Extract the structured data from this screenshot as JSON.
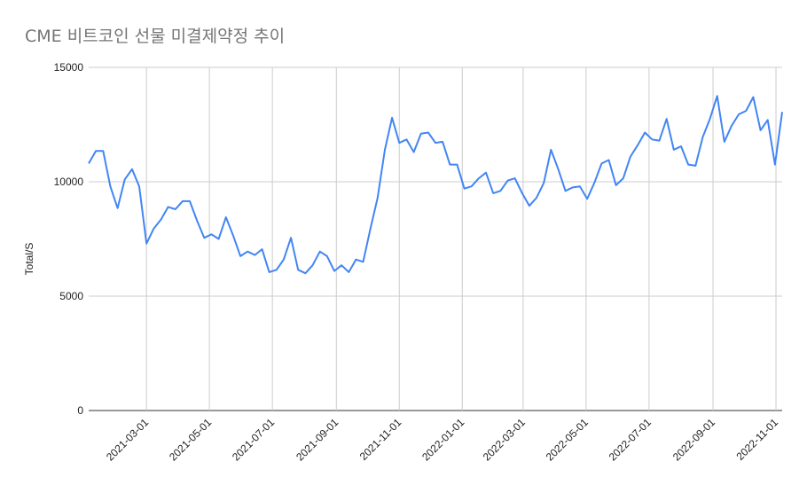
{
  "chart_data": {
    "type": "line",
    "title": "CME 비트코인 선물 미결제약정 추이",
    "xlabel": "",
    "ylabel": "Total/S",
    "ylim": [
      0,
      15000
    ],
    "yticks": [
      "0",
      "5000",
      "10000",
      "15000"
    ],
    "xticks": [
      "2021-03-01",
      "2021-05-01",
      "2021-07-01",
      "2021-09-01",
      "2021-11-01",
      "2022-01-01",
      "2022-03-01",
      "2022-05-01",
      "2022-07-01",
      "2022-09-01",
      "2022-11-01"
    ],
    "grid": true,
    "colors": {
      "line": "#4285f4",
      "grid": "#cccccc",
      "axis": "#333333"
    },
    "series": [
      {
        "x": [
          "2021-01-04",
          "2021-01-11",
          "2021-01-18",
          "2021-01-25",
          "2021-02-01",
          "2021-02-08",
          "2021-02-15",
          "2021-02-22",
          "2021-03-01",
          "2021-03-08",
          "2021-03-15",
          "2021-03-22",
          "2021-03-29",
          "2021-04-05",
          "2021-04-12",
          "2021-04-19",
          "2021-04-26",
          "2021-05-03",
          "2021-05-10",
          "2021-05-17",
          "2021-05-24",
          "2021-05-31",
          "2021-06-07",
          "2021-06-14",
          "2021-06-21",
          "2021-06-28",
          "2021-07-05",
          "2021-07-12",
          "2021-07-19",
          "2021-07-26",
          "2021-08-02",
          "2021-08-09",
          "2021-08-16",
          "2021-08-23",
          "2021-08-30",
          "2021-09-06",
          "2021-09-13",
          "2021-09-20",
          "2021-09-27",
          "2021-10-04",
          "2021-10-11",
          "2021-10-18",
          "2021-10-25",
          "2021-11-01",
          "2021-11-08",
          "2021-11-15",
          "2021-11-22",
          "2021-11-29",
          "2021-12-06",
          "2021-12-13",
          "2021-12-20",
          "2021-12-27",
          "2022-01-03",
          "2022-01-10",
          "2022-01-17",
          "2022-01-24",
          "2022-01-31",
          "2022-02-07",
          "2022-02-14",
          "2022-02-21",
          "2022-02-28",
          "2022-03-07",
          "2022-03-14",
          "2022-03-21",
          "2022-03-28",
          "2022-04-04",
          "2022-04-11",
          "2022-04-18",
          "2022-04-25",
          "2022-05-02",
          "2022-05-09",
          "2022-05-16",
          "2022-05-23",
          "2022-05-30",
          "2022-06-06",
          "2022-06-13",
          "2022-06-20",
          "2022-06-27",
          "2022-07-04",
          "2022-07-11",
          "2022-07-18",
          "2022-07-25",
          "2022-08-01",
          "2022-08-08",
          "2022-08-15",
          "2022-08-22",
          "2022-08-29",
          "2022-09-05",
          "2022-09-12",
          "2022-09-19",
          "2022-09-26",
          "2022-10-03",
          "2022-10-10",
          "2022-10-17",
          "2022-10-24",
          "2022-10-31",
          "2022-11-07"
        ],
        "values": [
          10800,
          11350,
          11350,
          9800,
          8850,
          10100,
          10550,
          9800,
          7300,
          7950,
          8350,
          8900,
          8800,
          9150,
          9150,
          8300,
          7550,
          7700,
          7500,
          8450,
          7650,
          6750,
          6950,
          6800,
          7050,
          6050,
          6150,
          6600,
          7550,
          6150,
          6000,
          6350,
          6950,
          6750,
          6100,
          6350,
          6050,
          6600,
          6500,
          7950,
          9300,
          11400,
          12800,
          11700,
          11850,
          11300,
          12100,
          12150,
          11700,
          11750,
          10750,
          10750,
          9700,
          9800,
          10150,
          10400,
          9500,
          9600,
          10050,
          10150,
          9500,
          8950,
          9300,
          9950,
          11400,
          10550,
          9600,
          9750,
          9800,
          9250,
          9950,
          10800,
          10950,
          9850,
          10150,
          11100,
          11600,
          12150,
          11850,
          11800,
          12750,
          11400,
          11550,
          10750,
          10700,
          11950,
          12750,
          13750,
          11750,
          12450,
          12950,
          13100,
          13700,
          12250,
          12700,
          10750,
          13050
        ]
      }
    ]
  }
}
